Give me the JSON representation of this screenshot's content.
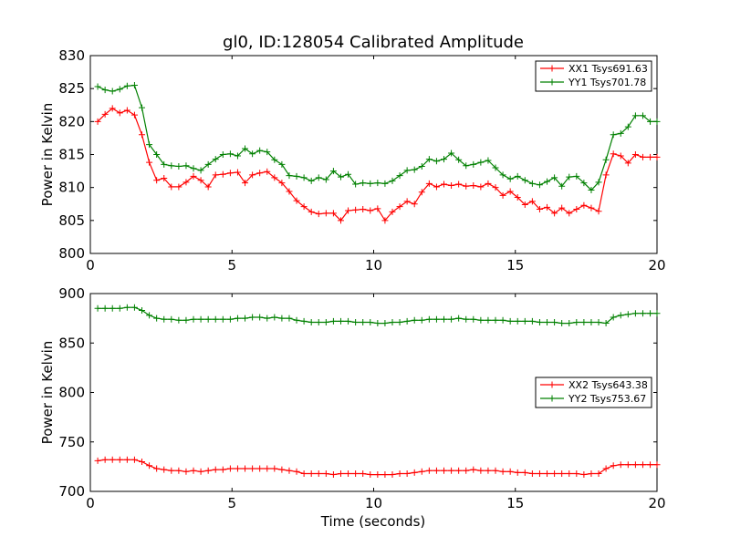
{
  "figure": {
    "title": "gl0, ID:128054 Calibrated Amplitude",
    "xlabel": "Time (seconds)"
  },
  "colors": {
    "xx": "#ff0000",
    "yy": "#008000",
    "axes": "#000000",
    "background": "#ffffff"
  },
  "chart_data": [
    {
      "type": "line",
      "title": "gl0, ID:128054 Calibrated Amplitude",
      "xlabel": "",
      "ylabel": "Power in Kelvin",
      "xlim": [
        0,
        20
      ],
      "ylim": [
        800,
        830
      ],
      "xticks": [
        0,
        5,
        10,
        15,
        20
      ],
      "yticks": [
        800,
        805,
        810,
        815,
        820,
        825,
        830
      ],
      "grid": false,
      "legend": "top-right",
      "marker": "+",
      "x": [
        0.26,
        0.52,
        0.78,
        1.04,
        1.3,
        1.56,
        1.82,
        2.08,
        2.34,
        2.6,
        2.86,
        3.12,
        3.38,
        3.64,
        3.9,
        4.16,
        4.42,
        4.68,
        4.94,
        5.2,
        5.46,
        5.72,
        5.98,
        6.24,
        6.5,
        6.76,
        7.02,
        7.28,
        7.54,
        7.8,
        8.06,
        8.32,
        8.58,
        8.84,
        9.1,
        9.36,
        9.62,
        9.88,
        10.14,
        10.4,
        10.66,
        10.92,
        11.18,
        11.44,
        11.7,
        11.96,
        12.22,
        12.48,
        12.74,
        13.0,
        13.26,
        13.52,
        13.78,
        14.04,
        14.3,
        14.56,
        14.82,
        15.08,
        15.34,
        15.6,
        15.86,
        16.12,
        16.38,
        16.64,
        16.9,
        17.16,
        17.42,
        17.68,
        17.94,
        18.2,
        18.46,
        18.72,
        18.98,
        19.24,
        19.5,
        19.76,
        20.0
      ],
      "series": [
        {
          "name": "XX1 Tsys691.63",
          "color": "#ff0000",
          "values": [
            820.0,
            821.1,
            822.0,
            821.3,
            821.7,
            821.0,
            818.0,
            813.8,
            811.1,
            811.4,
            810.1,
            810.1,
            810.8,
            811.7,
            811.1,
            810.1,
            811.9,
            812.0,
            812.2,
            812.3,
            810.7,
            811.9,
            812.2,
            812.4,
            811.5,
            810.7,
            809.4,
            808.0,
            807.1,
            806.3,
            806.0,
            806.1,
            806.1,
            805.0,
            806.5,
            806.6,
            806.7,
            806.5,
            806.8,
            805.0,
            806.3,
            807.1,
            807.9,
            807.5,
            809.3,
            810.6,
            810.1,
            810.5,
            810.3,
            810.5,
            810.2,
            810.3,
            810.1,
            810.6,
            810.0,
            808.8,
            809.4,
            808.5,
            807.4,
            807.9,
            806.7,
            807.0,
            806.1,
            806.9,
            806.1,
            806.7,
            807.3,
            806.9,
            806.4,
            811.9,
            815.1,
            814.8,
            813.7,
            815.0,
            814.6,
            814.6,
            814.6
          ]
        },
        {
          "name": "YY1 Tsys701.78",
          "color": "#008000",
          "values": [
            825.3,
            824.8,
            824.6,
            824.9,
            825.4,
            825.5,
            822.1,
            816.5,
            815.0,
            813.5,
            813.3,
            813.2,
            813.3,
            812.9,
            812.6,
            813.5,
            814.3,
            815.0,
            815.1,
            814.8,
            815.9,
            815.1,
            815.6,
            815.4,
            814.2,
            813.5,
            811.8,
            811.7,
            811.5,
            811.0,
            811.5,
            811.2,
            812.5,
            811.6,
            812.0,
            810.5,
            810.7,
            810.6,
            810.7,
            810.6,
            811.0,
            811.8,
            812.6,
            812.7,
            813.2,
            814.3,
            814.0,
            814.3,
            815.2,
            814.2,
            813.3,
            813.5,
            813.8,
            814.1,
            813.0,
            811.9,
            811.3,
            811.7,
            811.1,
            810.6,
            810.4,
            810.9,
            811.5,
            810.2,
            811.6,
            811.7,
            810.7,
            809.6,
            810.8,
            814.2,
            818.0,
            818.2,
            819.2,
            820.9,
            820.9,
            820.0,
            820.0
          ]
        }
      ]
    },
    {
      "type": "line",
      "title": "",
      "xlabel": "Time (seconds)",
      "ylabel": "Power in Kelvin",
      "xlim": [
        0,
        20
      ],
      "ylim": [
        700,
        900
      ],
      "xticks": [
        0,
        5,
        10,
        15,
        20
      ],
      "yticks": [
        700,
        750,
        800,
        850,
        900
      ],
      "grid": false,
      "legend": "center-right",
      "marker": "+",
      "x": [
        0.26,
        0.52,
        0.78,
        1.04,
        1.3,
        1.56,
        1.82,
        2.08,
        2.34,
        2.6,
        2.86,
        3.12,
        3.38,
        3.64,
        3.9,
        4.16,
        4.42,
        4.68,
        4.94,
        5.2,
        5.46,
        5.72,
        5.98,
        6.24,
        6.5,
        6.76,
        7.02,
        7.28,
        7.54,
        7.8,
        8.06,
        8.32,
        8.58,
        8.84,
        9.1,
        9.36,
        9.62,
        9.88,
        10.14,
        10.4,
        10.66,
        10.92,
        11.18,
        11.44,
        11.7,
        11.96,
        12.22,
        12.48,
        12.74,
        13.0,
        13.26,
        13.52,
        13.78,
        14.04,
        14.3,
        14.56,
        14.82,
        15.08,
        15.34,
        15.6,
        15.86,
        16.12,
        16.38,
        16.64,
        16.9,
        17.16,
        17.42,
        17.68,
        17.94,
        18.2,
        18.46,
        18.72,
        18.98,
        19.24,
        19.5,
        19.76,
        20.0
      ],
      "series": [
        {
          "name": "XX2 Tsys643.38",
          "color": "#ff0000",
          "values": [
            731,
            732,
            732,
            732,
            732,
            732,
            730,
            726,
            723,
            722,
            721,
            721,
            720,
            721,
            720,
            721,
            722,
            722,
            723,
            723,
            723,
            723,
            723,
            723,
            723,
            722,
            721,
            720,
            718,
            718,
            718,
            718,
            717,
            718,
            718,
            718,
            718,
            717,
            717,
            717,
            717,
            718,
            718,
            719,
            720,
            721,
            721,
            721,
            721,
            721,
            721,
            722,
            721,
            721,
            721,
            720,
            720,
            719,
            719,
            718,
            718,
            718,
            718,
            718,
            718,
            718,
            717,
            718,
            718,
            723,
            726,
            727,
            727,
            727,
            727,
            727,
            727
          ]
        },
        {
          "name": "YY2 Tsys753.67",
          "color": "#008000",
          "values": [
            885,
            885,
            885,
            885,
            886,
            886,
            883,
            878,
            875,
            874,
            874,
            873,
            873,
            874,
            874,
            874,
            874,
            874,
            874,
            875,
            875,
            876,
            876,
            875,
            876,
            875,
            875,
            873,
            872,
            871,
            871,
            871,
            872,
            872,
            872,
            871,
            871,
            871,
            870,
            870,
            871,
            871,
            872,
            873,
            873,
            874,
            874,
            874,
            874,
            875,
            874,
            874,
            873,
            873,
            873,
            873,
            872,
            872,
            872,
            872,
            871,
            871,
            871,
            870,
            870,
            871,
            871,
            871,
            871,
            870,
            876,
            878,
            879,
            880,
            880,
            880,
            880
          ]
        }
      ]
    }
  ]
}
